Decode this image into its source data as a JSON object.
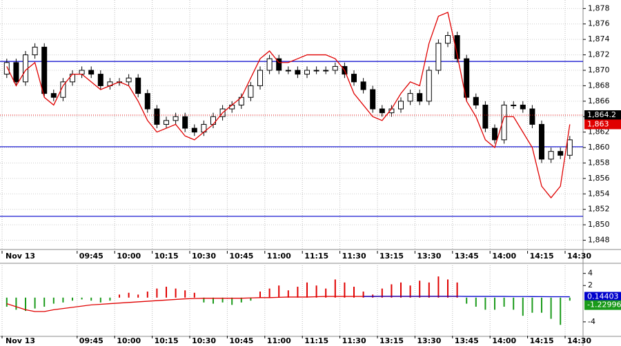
{
  "chart_data": [
    {
      "type": "candlestick",
      "categories": [
        "Nov 13",
        null,
        null,
        null,
        null,
        null,
        null,
        null,
        "09:45",
        null,
        null,
        null,
        "10:00",
        null,
        null,
        null,
        "10:15",
        null,
        null,
        null,
        "10:30",
        null,
        null,
        null,
        "10:45",
        null,
        null,
        null,
        "11:00",
        null,
        null,
        null,
        "11:15",
        null,
        null,
        null,
        "11:30",
        null,
        null,
        null,
        "13:15",
        null,
        null,
        null,
        "13:30",
        null,
        null,
        null,
        "13:45",
        null,
        null,
        null,
        "14:00",
        null,
        null,
        null,
        "14:15",
        null,
        null,
        null,
        "14:30"
      ],
      "open": [
        1869.5,
        1871,
        1868.5,
        1872,
        1873,
        1867,
        1866.5,
        1868.5,
        1869.5,
        1870,
        1869.5,
        1868,
        1868.5,
        1868.5,
        1869,
        1867,
        1865,
        1863,
        1863.5,
        1864,
        1862.5,
        1862,
        1863,
        1864,
        1865,
        1865.5,
        1866.5,
        1868,
        1870,
        1871.5,
        1870,
        1870,
        1869.5,
        1870,
        1870,
        1870,
        1870.5,
        1869.5,
        1868.5,
        1867.5,
        1865,
        1864.5,
        1865,
        1866,
        1867,
        1866,
        1870,
        1873.5,
        1874.5,
        1871.5,
        1866.5,
        1865.5,
        1862.5,
        1861,
        1865.5,
        1865.5,
        1865,
        1863,
        1858.5,
        1859.5,
        1859
      ],
      "high": [
        1871.5,
        1871.5,
        1872.5,
        1873.5,
        1873.5,
        1867.5,
        1869,
        1870,
        1870.5,
        1870.5,
        1870,
        1869,
        1869,
        1869.5,
        1869.5,
        1867.5,
        1865.5,
        1864,
        1864.5,
        1864.5,
        1863,
        1863.5,
        1864.5,
        1865.5,
        1866,
        1867,
        1868.5,
        1870.5,
        1872,
        1872,
        1870.5,
        1870.5,
        1870.5,
        1870.5,
        1870.5,
        1871,
        1871,
        1870,
        1869,
        1868,
        1865.5,
        1865.5,
        1866.5,
        1867.5,
        1867.5,
        1870.5,
        1874,
        1875,
        1875,
        1872,
        1867,
        1866,
        1863,
        1866,
        1866,
        1866,
        1865.5,
        1863.5,
        1860,
        1860,
        1861.5
      ],
      "low": [
        1869,
        1868,
        1868,
        1871.5,
        1866.5,
        1866,
        1866,
        1868,
        1869,
        1869,
        1867.5,
        1867.5,
        1868,
        1868,
        1866.5,
        1864.5,
        1862.5,
        1862.5,
        1863,
        1862,
        1861.5,
        1861.5,
        1862.5,
        1863.5,
        1864.5,
        1865,
        1866,
        1867.5,
        1869.5,
        1869.5,
        1869.5,
        1869,
        1869,
        1869.5,
        1869.5,
        1869.5,
        1869,
        1868,
        1867,
        1864.5,
        1864,
        1864,
        1864.5,
        1865.5,
        1865.5,
        1865.5,
        1869.5,
        1873,
        1871,
        1866,
        1865,
        1862,
        1860.5,
        1860.5,
        1865,
        1864.5,
        1862.5,
        1858,
        1858,
        1858.5,
        1858.5
      ],
      "close": [
        1871,
        1868.5,
        1872,
        1873,
        1867,
        1866.5,
        1868.5,
        1869.5,
        1870,
        1869.5,
        1868,
        1868.5,
        1868.5,
        1869,
        1867,
        1865,
        1863,
        1863.5,
        1864,
        1862.5,
        1862,
        1863,
        1864,
        1865,
        1865.5,
        1866.5,
        1868,
        1870,
        1871.5,
        1870,
        1870,
        1869.5,
        1870,
        1870,
        1870,
        1870.5,
        1869.5,
        1868.5,
        1867.5,
        1865,
        1864.5,
        1865,
        1866,
        1867,
        1866,
        1870,
        1873.5,
        1874.5,
        1871.5,
        1866.5,
        1865.5,
        1862.5,
        1861,
        1865.5,
        1865.5,
        1865,
        1863,
        1858.5,
        1859.5,
        1859,
        1861
      ],
      "up_color": "#ffffff",
      "down_color": "#000000",
      "overlay": {
        "color": "#e00000",
        "values": [
          1870.5,
          1868,
          1870,
          1871,
          1866.5,
          1865.5,
          1868,
          1869.5,
          1869.5,
          1868.5,
          1867.5,
          1868,
          1868.5,
          1868,
          1866,
          1863.5,
          1862,
          1862.5,
          1863,
          1861.5,
          1861,
          1862,
          1863,
          1864.5,
          1865.5,
          1866.5,
          1869,
          1871.5,
          1872.5,
          1871,
          1871,
          1871.5,
          1872,
          1872,
          1872,
          1871.5,
          1870,
          1867,
          1865.5,
          1864,
          1863.5,
          1865,
          1867,
          1868.5,
          1868,
          1873.5,
          1877,
          1877.5,
          1872,
          1866,
          1864,
          1861,
          1860,
          1864,
          1864,
          1862,
          1860,
          1855,
          1853.5,
          1855,
          1863
        ]
      },
      "hlines": {
        "color": "#0000cc",
        "values": [
          1871.15,
          1860.1,
          1851.1
        ]
      },
      "ylim": [
        1846.8,
        1879.1
      ],
      "yticks": [
        {
          "value": 1848,
          "label": "1,848"
        },
        {
          "value": 1850,
          "label": "1,850"
        },
        {
          "value": 1852,
          "label": "1,852"
        },
        {
          "value": 1854,
          "label": "1,854"
        },
        {
          "value": 1856,
          "label": "1,856"
        },
        {
          "value": 1858,
          "label": "1,858"
        },
        {
          "value": 1860,
          "label": "1,860"
        },
        {
          "value": 1862,
          "label": "1,862"
        },
        {
          "value": 1864,
          "label": "1,864"
        },
        {
          "value": 1866,
          "label": "1,866"
        },
        {
          "value": 1868,
          "label": "1,868"
        },
        {
          "value": 1870,
          "label": "1,870"
        },
        {
          "value": 1872,
          "label": "1,872"
        },
        {
          "value": 1874,
          "label": "1,874"
        },
        {
          "value": 1876,
          "label": "1,876"
        },
        {
          "value": 1878,
          "label": "1,878"
        }
      ],
      "grid": true,
      "markers": [
        {
          "value": 1864.2,
          "label": "1,864.2",
          "color": "#000000",
          "line": true
        },
        {
          "value": 1863,
          "label": "1,863",
          "color": "#e00000"
        }
      ]
    },
    {
      "type": "bar",
      "values": [
        -1.5,
        -2,
        -2.2,
        -1.8,
        -1.5,
        -1,
        -0.8,
        -0.5,
        -0.3,
        -0.5,
        -0.8,
        -0.5,
        0.5,
        0.8,
        0.5,
        1,
        1.5,
        1.8,
        1.5,
        1.2,
        0.8,
        -0.8,
        -1,
        -0.8,
        -1.2,
        -0.8,
        -0.5,
        1,
        1.5,
        2,
        1.2,
        1.8,
        2.5,
        2,
        1.5,
        3,
        2.5,
        1.8,
        1,
        0.5,
        1.5,
        2.2,
        2.5,
        2,
        2.8,
        2.5,
        3.5,
        3,
        2.5,
        -1,
        -1.5,
        -2,
        -2,
        -1.5,
        -2,
        -3,
        -2.5,
        -2.5,
        -3.5,
        -4.5,
        -0.5
      ],
      "pos_color": "#e00000",
      "neg_color": "#1a9a1a",
      "lines": [
        {
          "color": "#e00000",
          "values": [
            -1,
            -1.5,
            -2,
            -2.3,
            -2.3,
            -2,
            -1.8,
            -1.6,
            -1.4,
            -1.2,
            -1.1,
            -1,
            -0.9,
            -0.8,
            -0.7,
            -0.6,
            -0.5,
            -0.4,
            -0.3,
            -0.2,
            -0.15,
            -0.1,
            -0.1,
            -0.1,
            -0.1,
            -0.1,
            -0.05,
            0,
            0,
            0.05,
            0.1,
            0.1,
            0.1,
            0.15,
            0.2,
            0.2,
            0.2,
            0.2,
            0.2,
            0.2,
            0.2,
            0.2,
            0.2,
            0.2,
            0.2,
            0.2,
            0.2,
            0.2,
            0.2,
            null,
            null,
            null,
            null,
            null,
            null,
            null,
            null,
            null,
            null,
            null,
            null
          ]
        },
        {
          "color": "#0000cc",
          "values": [
            null,
            null,
            null,
            null,
            null,
            null,
            null,
            null,
            null,
            null,
            null,
            null,
            null,
            null,
            null,
            null,
            null,
            null,
            null,
            null,
            null,
            null,
            null,
            null,
            null,
            null,
            null,
            null,
            null,
            null,
            null,
            null,
            null,
            null,
            null,
            null,
            null,
            null,
            0.2,
            0.2,
            0.22,
            0.22,
            0.22,
            0.22,
            0.22,
            0.22,
            0.22,
            0.22,
            0.22,
            0.2,
            0.2,
            0.2,
            0.2,
            0.2,
            0.18,
            0.18,
            0.17,
            0.16,
            0.15,
            0.15,
            0.14
          ]
        }
      ],
      "ylim": [
        -6.4,
        5.33
      ],
      "yticks": [
        4,
        2,
        -4
      ],
      "markers": [
        {
          "value": 0.14403,
          "label": "0.14403",
          "color": "#0000cc"
        },
        {
          "value": -1.22996,
          "label": "-1.22996",
          "color": "#1a9a1a"
        }
      ]
    }
  ]
}
